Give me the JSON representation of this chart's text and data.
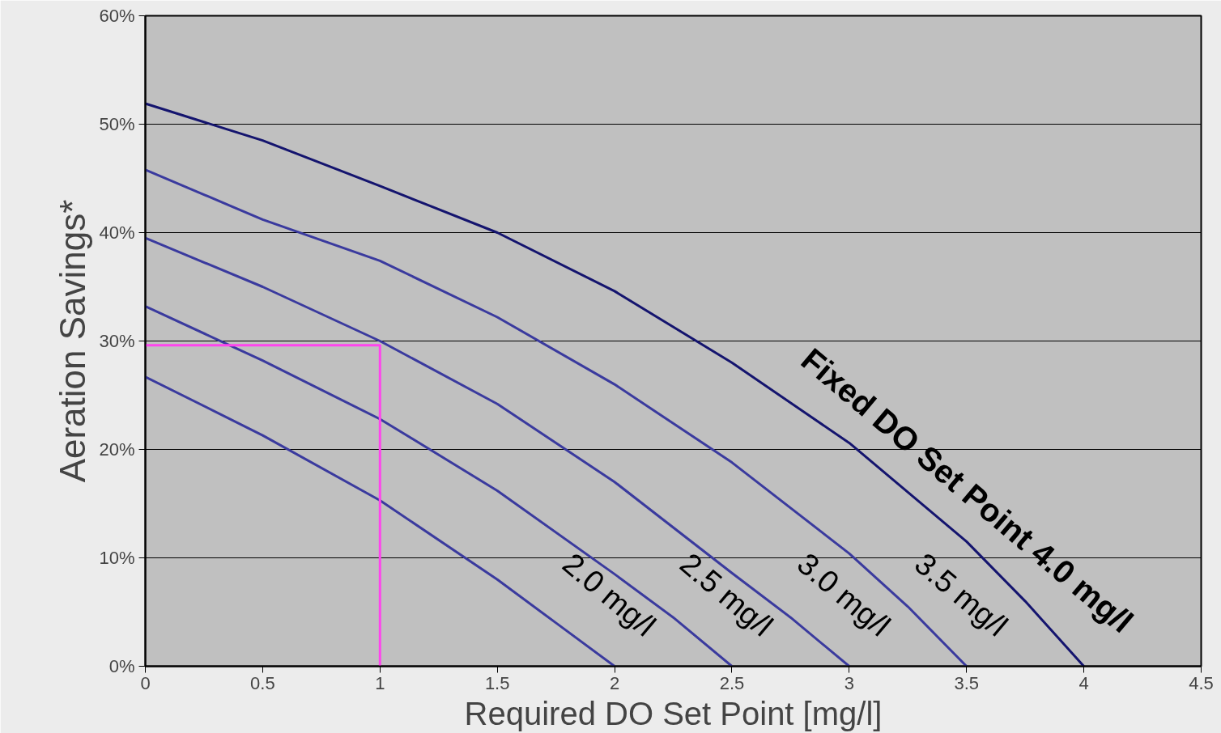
{
  "chart_data": {
    "type": "line",
    "xlabel": "Required DO Set Point [mg/l]",
    "ylabel": "Aeration Savings*",
    "xlim": [
      0,
      4.5
    ],
    "ylim": [
      0,
      60
    ],
    "xticks": [
      0,
      0.5,
      1,
      1.5,
      2,
      2.5,
      3,
      3.5,
      4,
      4.5
    ],
    "yticks": [
      {
        "value": 0,
        "label": "0%"
      },
      {
        "value": 10,
        "label": "10%"
      },
      {
        "value": 20,
        "label": "20%"
      },
      {
        "value": 30,
        "label": "30%"
      },
      {
        "value": 40,
        "label": "40%"
      },
      {
        "value": 50,
        "label": "50%"
      },
      {
        "value": 60,
        "label": "60%"
      }
    ],
    "grid": "y",
    "marker": "none",
    "line_style": "solid",
    "series": [
      {
        "name": "2.0 mg/l",
        "color": "#3a3a9e",
        "x": [
          0,
          0.5,
          1,
          1.5,
          1.75,
          2
        ],
        "values": [
          26.7,
          21.3,
          15.3,
          8,
          4,
          0
        ]
      },
      {
        "name": "2.5 mg/l",
        "color": "#3a3a9e",
        "x": [
          0,
          0.5,
          1,
          1.5,
          2,
          2.25,
          2.5
        ],
        "values": [
          33.2,
          28.2,
          22.8,
          16.2,
          8.5,
          4.5,
          0
        ]
      },
      {
        "name": "3.0 mg/l",
        "color": "#3a3a9e",
        "x": [
          0,
          0.5,
          1,
          1.5,
          2,
          2.5,
          2.75,
          3
        ],
        "values": [
          39.5,
          35,
          30,
          24.2,
          17,
          8.6,
          4.5,
          0
        ]
      },
      {
        "name": "3.5 mg/l",
        "color": "#3a3a9e",
        "x": [
          0,
          0.5,
          1,
          1.5,
          2,
          2.5,
          3,
          3.25,
          3.5
        ],
        "values": [
          45.8,
          41.2,
          37.4,
          32.2,
          26,
          18.8,
          10.4,
          5.5,
          0
        ]
      },
      {
        "name": "Fixed DO Set Point 4.0 mg/l",
        "color": "#14146e",
        "x": [
          0,
          0.5,
          1,
          1.5,
          2,
          2.5,
          3,
          3.5,
          3.75,
          4
        ],
        "values": [
          51.9,
          48.5,
          44.3,
          40,
          34.6,
          28,
          20.6,
          11.5,
          6,
          0
        ]
      },
      {
        "color": "#ff44ee",
        "x": [
          0,
          1,
          1
        ],
        "values": [
          29.6,
          29.6,
          0
        ]
      }
    ]
  }
}
